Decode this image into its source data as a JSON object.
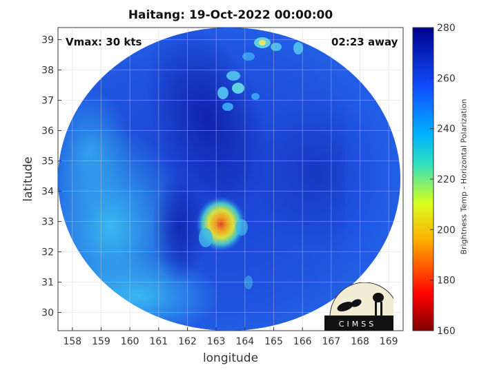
{
  "header": {
    "title": "Haitang: 19-Oct-2022 00:00:00",
    "vmax": "Vmax: 30 kts",
    "time_away": "02:23 away"
  },
  "axes": {
    "xlabel": "longitude",
    "ylabel": "latitude",
    "xticks": [
      "158",
      "159",
      "160",
      "161",
      "162",
      "163",
      "164",
      "165",
      "166",
      "167",
      "168",
      "169"
    ],
    "yticks": [
      "30",
      "31",
      "32",
      "33",
      "34",
      "35",
      "36",
      "37",
      "38",
      "39"
    ],
    "xlim": [
      157.5,
      169.5
    ],
    "ylim": [
      29.4,
      39.4
    ]
  },
  "colorbar": {
    "label": "Brightness Temp - Horizontal Polarization",
    "ticks": [
      "160",
      "180",
      "200",
      "220",
      "240",
      "260",
      "280"
    ],
    "range": [
      160,
      280
    ]
  },
  "logo": {
    "text": "CIMSS"
  },
  "storm_center": {
    "lon": 163.1,
    "lat": 33.1
  },
  "colors": {
    "background_blue": "#1f4fd6",
    "warm_core": "#d84a1f"
  }
}
